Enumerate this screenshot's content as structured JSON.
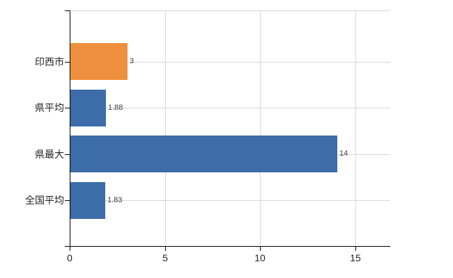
{
  "chart_data": {
    "type": "bar",
    "orientation": "horizontal",
    "title": "",
    "categories": [
      "印西市",
      "県平均",
      "県最大",
      "全国平均"
    ],
    "values": [
      3,
      1.88,
      14,
      1.83
    ],
    "value_labels": [
      "3",
      "1.88",
      "14",
      "1.83"
    ],
    "bar_colors": [
      "#ef903e",
      "#3d6da8",
      "#3d6da8",
      "#3d6da8"
    ],
    "x_ticks": [
      0,
      5,
      10,
      15
    ],
    "x_tick_labels": [
      "0",
      "5",
      "10",
      "15"
    ],
    "xlim": [
      0,
      16.8
    ],
    "grid": true,
    "legend": false,
    "colors": {
      "highlight_bar": "#ef903e",
      "default_bar": "#3d6da8",
      "grid_line": "#d6d6d6",
      "axis_line": "#000000",
      "category_label": "#222222",
      "value_label": "#3c3c3c"
    }
  }
}
